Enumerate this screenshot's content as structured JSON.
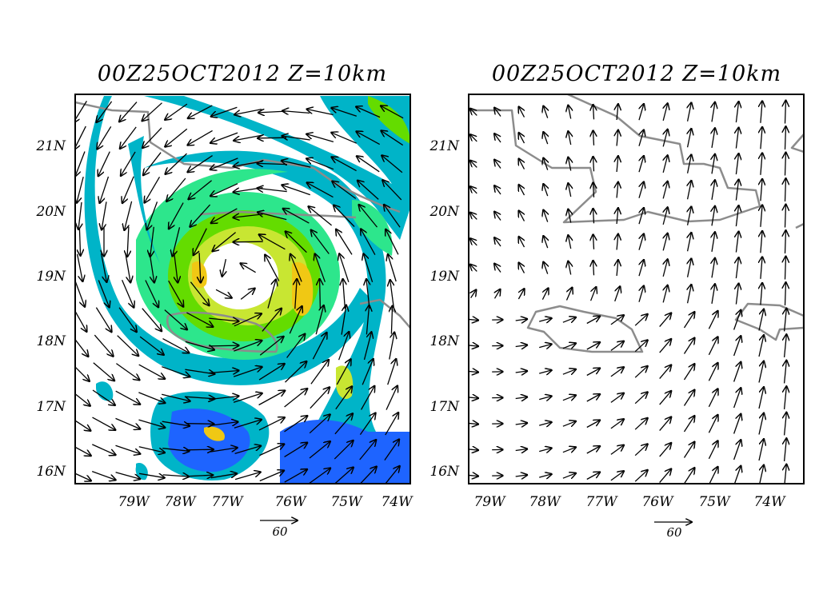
{
  "panels": [
    {
      "id": "left",
      "title": "00Z25OCT2012  Z=10km",
      "lat_labels": [
        "21N",
        "20N",
        "19N",
        "18N",
        "17N",
        "16N"
      ],
      "lon_labels": [
        "79W",
        "78W",
        "77W",
        "76W",
        "75W",
        "74W"
      ],
      "scale_label": "60",
      "shaded_field": true
    },
    {
      "id": "right",
      "title": "00Z25OCT2012  Z=10km",
      "lat_labels": [
        "21N",
        "20N",
        "19N",
        "18N",
        "17N",
        "16N"
      ],
      "lon_labels": [
        "79W",
        "78W",
        "77W",
        "76W",
        "75W",
        "74W"
      ],
      "scale_label": "60",
      "shaded_field": false
    }
  ],
  "colors": {
    "shade_levels": [
      "#00b4c8",
      "#1e64ff",
      "#2de68c",
      "#64dc00",
      "#c8e632",
      "#f0c814"
    ],
    "coastline": "#8c8c8c"
  },
  "storm_center": {
    "lon": -76.9,
    "lat": 19.1
  }
}
